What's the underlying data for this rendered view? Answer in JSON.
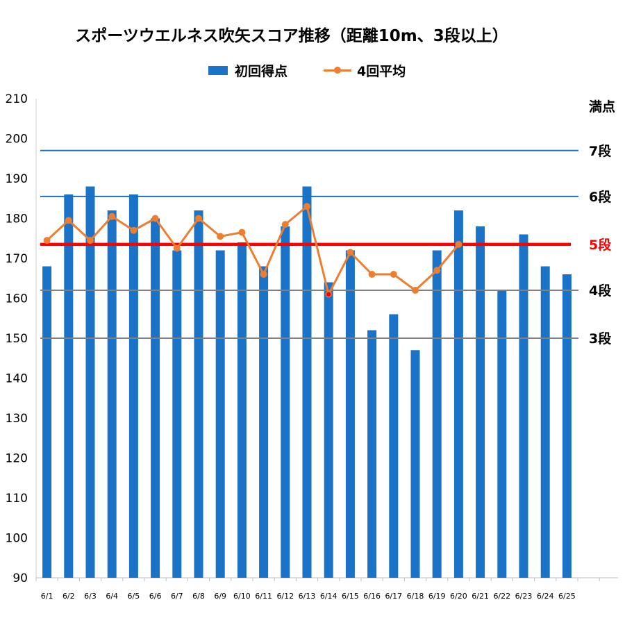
{
  "chart_data": {
    "type": "bar",
    "title": "スポーツウエルネス吹矢スコア推移（距離10m、3段以上）",
    "categories": [
      "6/1",
      "6/2",
      "6/3",
      "6/4",
      "6/5",
      "6/6",
      "6/7",
      "6/8",
      "6/9",
      "6/10",
      "6/11",
      "6/12",
      "6/13",
      "6/14",
      "6/15",
      "6/16",
      "6/17",
      "6/18",
      "6/19",
      "6/20",
      "6/21",
      "6/22",
      "6/23",
      "6/24",
      "6/25"
    ],
    "series": [
      {
        "name": "初回得点",
        "type": "bar",
        "color": "#1a73c6",
        "values": [
          168,
          186,
          188,
          182,
          186,
          180,
          172,
          182,
          172,
          174,
          168,
          178,
          188,
          164,
          172,
          152,
          156,
          147,
          172,
          182,
          178,
          162,
          176,
          168,
          166
        ]
      },
      {
        "name": "4回平均",
        "type": "line",
        "color": "#ed7d31",
        "values": [
          174.5,
          179.5,
          174.5,
          180.5,
          177,
          180,
          172.5,
          180,
          175.5,
          176.5,
          166,
          178.5,
          183,
          161,
          171.5,
          166,
          166,
          162,
          167,
          173.5,
          null,
          null,
          null,
          null,
          null
        ],
        "highlight": {
          "index": 13,
          "color": "#ff0000"
        }
      }
    ],
    "ylim": [
      90,
      210
    ],
    "yticks": [
      90,
      100,
      110,
      120,
      130,
      140,
      150,
      160,
      170,
      180,
      190,
      200,
      210
    ],
    "grid": false,
    "legend_position": "top",
    "reference_lines": [
      {
        "label": "満点",
        "value": 210,
        "color": "#000000",
        "line_color": null
      },
      {
        "label": "7段",
        "value": 197,
        "color": "#000000",
        "line_color": "#1a6fb8"
      },
      {
        "label": "6段",
        "value": 185.5,
        "color": "#000000",
        "line_color": "#1a6fb8"
      },
      {
        "label": "5段",
        "value": 173.5,
        "color": "#ff0000",
        "line_color": "#ff0000"
      },
      {
        "label": "4段",
        "value": 162,
        "color": "#000000",
        "line_color": "#808080"
      },
      {
        "label": "3段",
        "value": 150,
        "color": "#000000",
        "line_color": "#808080"
      }
    ]
  }
}
